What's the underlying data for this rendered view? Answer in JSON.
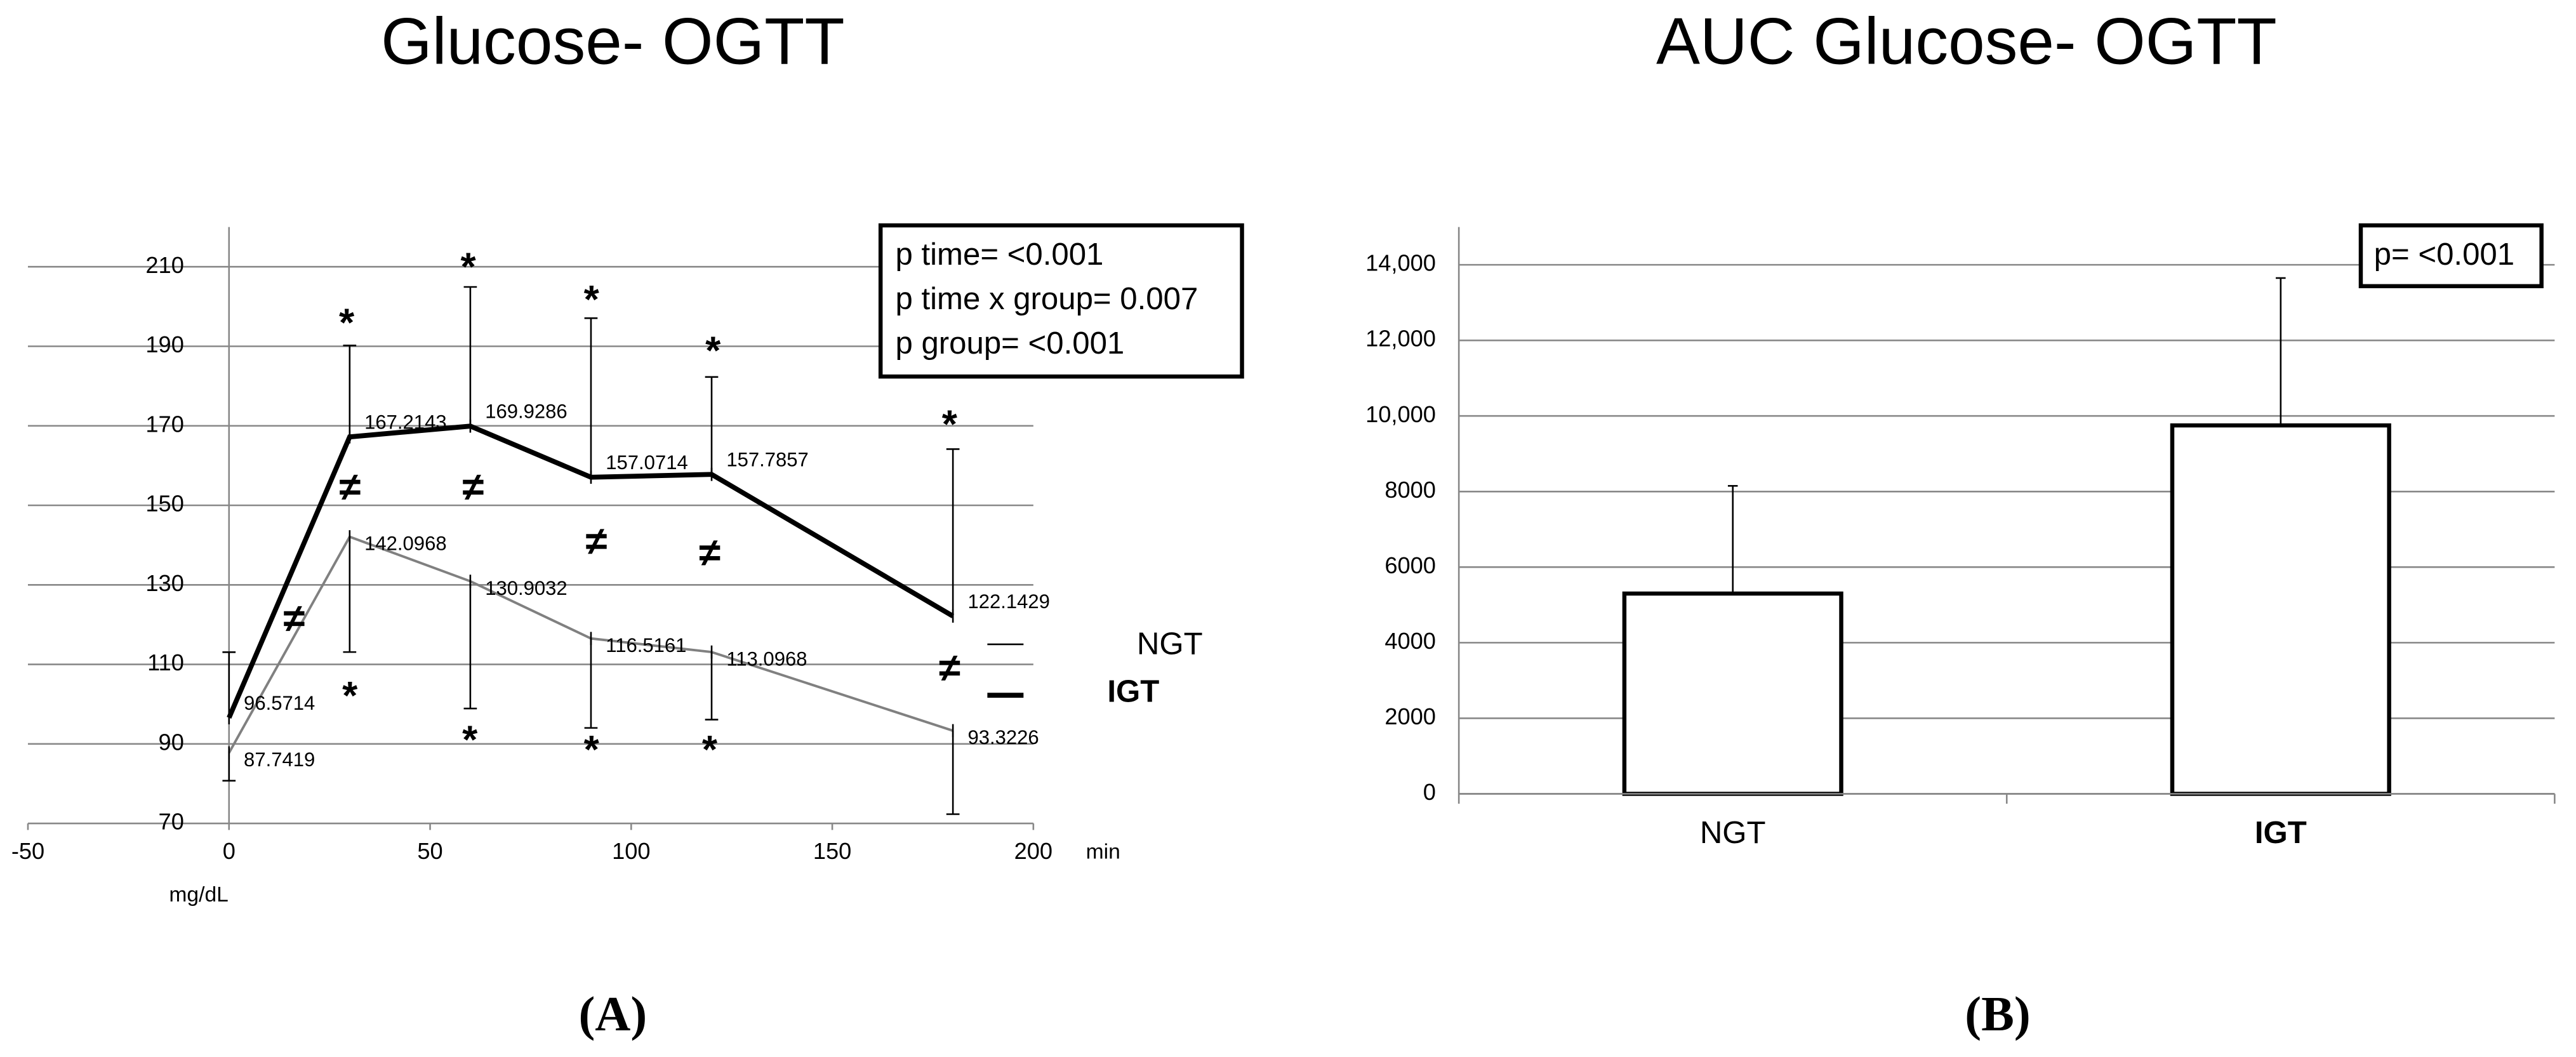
{
  "chart_data": [
    {
      "type": "line",
      "title": "Glucose- OGTT",
      "x_label": "min",
      "y_label": "mg/dL",
      "x": [
        0,
        30,
        60,
        90,
        120,
        180
      ],
      "xlim": [
        -50,
        200
      ],
      "xticks": [
        -50,
        0,
        50,
        100,
        150,
        200
      ],
      "ylim": [
        70,
        220
      ],
      "yticks": [
        70,
        90,
        110,
        130,
        150,
        170,
        190,
        210
      ],
      "grid": true,
      "series": [
        {
          "name": "NGT",
          "color": "#808080",
          "values": [
            87.7419,
            142.0968,
            130.9032,
            116.5161,
            113.0968,
            93.3226
          ],
          "errors": [
            7,
            29,
            32,
            22.5,
            17,
            21
          ]
        },
        {
          "name": "IGT",
          "color": "#000000",
          "values": [
            96.5714,
            167.2143,
            169.9286,
            157.0714,
            157.7857,
            122.1429
          ],
          "errors": [
            16.5,
            23,
            35,
            40,
            24.5,
            42
          ]
        }
      ],
      "stats": [
        "p time= <0.001",
        "p time x group= 0.007",
        "p group= <0.001"
      ],
      "annotations": [
        "*",
        "*",
        "*",
        "*",
        "*",
        "≠",
        "≠",
        "≠",
        "≠",
        "≠",
        "≠",
        "*",
        "*",
        "*",
        "*"
      ],
      "caption": "(A)"
    },
    {
      "type": "bar",
      "title": "AUC Glucose- OGTT",
      "categories": [
        "NGT",
        "IGT"
      ],
      "values": [
        5300,
        9750
      ],
      "errors": [
        2850,
        3900
      ],
      "color": "#ffffff",
      "ylim": [
        0,
        15000
      ],
      "yticks": [
        0,
        2000,
        4000,
        6000,
        8000,
        {
          "value": 10000,
          "label": "10,000"
        },
        {
          "value": 12000,
          "label": "12,000"
        },
        {
          "value": 14000,
          "label": "14,000"
        }
      ],
      "grid": true,
      "stats": [
        "p= <0.001"
      ],
      "caption": "(B)"
    }
  ]
}
